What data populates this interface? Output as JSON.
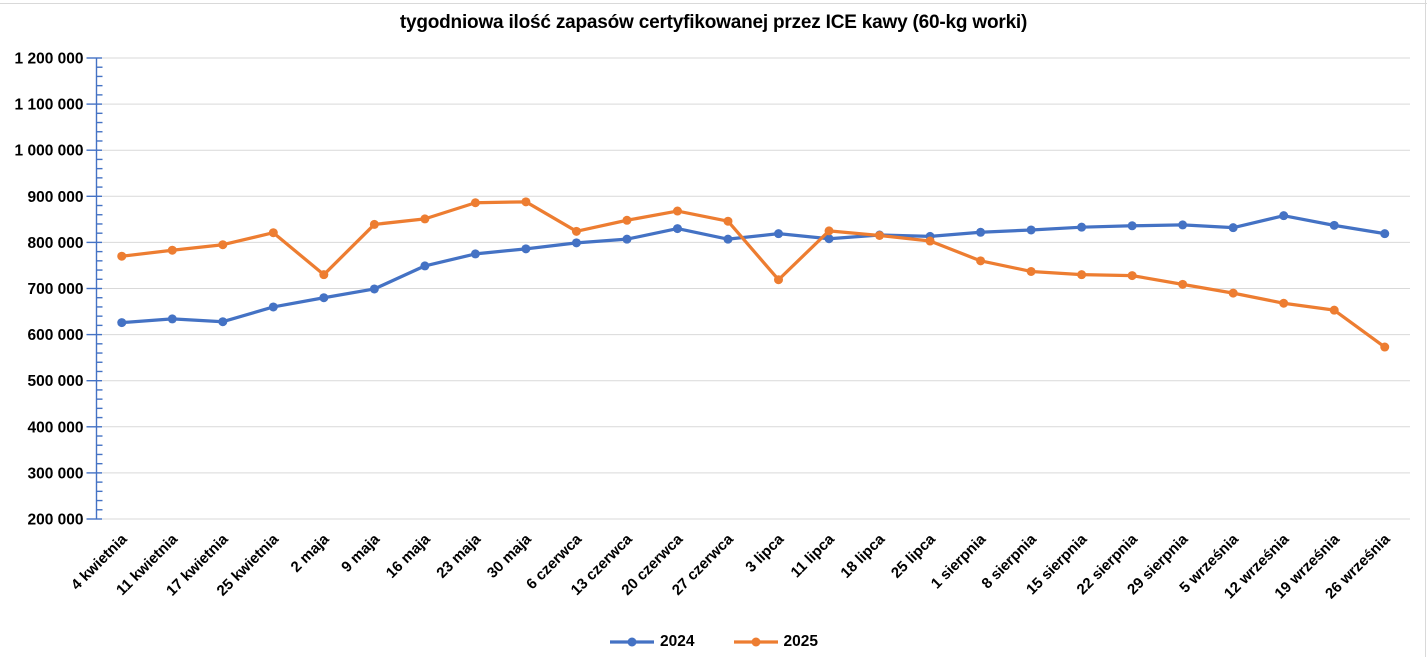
{
  "chart_data": {
    "type": "line",
    "title": "tygodniowa ilość zapasów certyfikowanej przez ICE kawy (60-kg worki)",
    "categories": [
      "4 kwietnia",
      "11 kwietnia",
      "17 kwietnia",
      "25 kwietnia",
      "2 maja",
      "9 maja",
      "16 maja",
      "23 maja",
      "30 maja",
      "6 czerwca",
      "13 czerwca",
      "20 czerwca",
      "27 czerwca",
      "3 lipca",
      "11 lipca",
      "18 lipca",
      "25 lipca",
      "1 sierpnia",
      "8 sierpnia",
      "15 sierpnia",
      "22 sierpnia",
      "29 sierpnia",
      "5 września",
      "12 września",
      "19 września",
      "26 września"
    ],
    "series": [
      {
        "name": "2024",
        "color": "#4472C4",
        "values": [
          626000,
          634000,
          628000,
          660000,
          680000,
          699000,
          749000,
          775000,
          786000,
          799000,
          807000,
          830000,
          807000,
          819000,
          808000,
          816000,
          813000,
          822000,
          827000,
          833000,
          836000,
          838000,
          832000,
          858000,
          837000,
          819000
        ]
      },
      {
        "name": "2025",
        "color": "#ED7D31",
        "values": [
          770000,
          783000,
          795000,
          821000,
          730000,
          839000,
          851000,
          886000,
          888000,
          824000,
          848000,
          868000,
          846000,
          719000,
          825000,
          815000,
          803000,
          760000,
          737000,
          730000,
          728000,
          709000,
          690000,
          668000,
          653000,
          573000
        ]
      }
    ],
    "ylim": [
      200000,
      1200000
    ],
    "y_major_unit": 100000,
    "y_minor_unit": 20000,
    "y_tick_labels": [
      "200 000",
      "300 000",
      "400 000",
      "500 000",
      "600 000",
      "700 000",
      "800 000",
      "900 000",
      "1 000 000",
      "1 100 000",
      "1 200 000"
    ],
    "grid": true,
    "legend_position": "bottom",
    "axis_color": "#4472C4",
    "gridline_color": "#D9D9D9",
    "text_color": "#000000"
  }
}
